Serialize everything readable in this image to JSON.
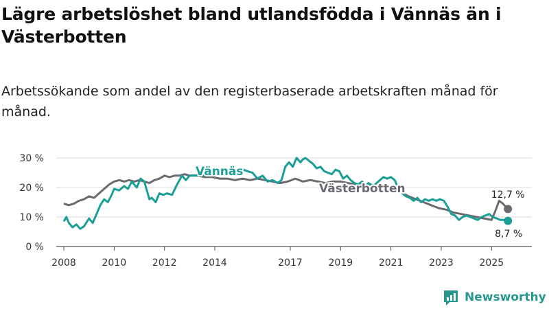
{
  "header": {
    "title": "Lägre arbetslöshet bland utlandsfödda i Vännäs än i Västerbotten",
    "subtitle": "Arbetssökande som andel av den registerbaserade arbetskraften månad för månad."
  },
  "brand": {
    "name": "Newsworthy"
  },
  "chart_data": {
    "type": "line",
    "title": "Lägre arbetslöshet bland utlandsfödda i Vännäs än i Västerbotten",
    "subtitle": "Arbetssökande som andel av den registerbaserade arbetskraften månad för månad.",
    "xlabel": "",
    "ylabel": "",
    "xlim": [
      2007.7,
      2026.6
    ],
    "ylim": [
      0,
      30
    ],
    "y_ticks": [
      0,
      10,
      20,
      30
    ],
    "y_tick_labels": [
      "0 %",
      "10 %",
      "20 %",
      "30 %"
    ],
    "x_ticks": [
      2008,
      2010,
      2012,
      2014,
      2017,
      2019,
      2021,
      2023,
      2025
    ],
    "x_tick_labels": [
      "2008",
      "2010",
      "2012",
      "2014",
      "2017",
      "2019",
      "2021",
      "2023",
      "2025"
    ],
    "grid": true,
    "colors": {
      "Vännäs": "#1a9e96",
      "Västerbotten": "#6b6a70"
    },
    "series": [
      {
        "name": "Vännäs",
        "label": "Vännäs",
        "end_label": "8,7 %",
        "x": [
          2008.0,
          2008.1,
          2008.2,
          2008.35,
          2008.5,
          2008.65,
          2008.8,
          2009.0,
          2009.15,
          2009.3,
          2009.45,
          2009.6,
          2009.75,
          2009.9,
          2010.0,
          2010.2,
          2010.4,
          2010.55,
          2010.7,
          2010.9,
          2011.05,
          2011.2,
          2011.4,
          2011.5,
          2011.65,
          2011.8,
          2011.95,
          2012.1,
          2012.3,
          2012.5,
          2012.7,
          2012.85,
          2013.0,
          2015.0,
          2015.15,
          2015.3,
          2015.5,
          2015.7,
          2015.9,
          2016.1,
          2016.3,
          2016.5,
          2016.65,
          2016.8,
          2016.95,
          2017.1,
          2017.25,
          2017.4,
          2017.5,
          2017.6,
          2017.75,
          2017.9,
          2018.05,
          2018.2,
          2018.35,
          2018.5,
          2018.65,
          2018.8,
          2018.95,
          2019.1,
          2019.25,
          2019.4,
          2019.55,
          2019.7,
          2019.85,
          2020.0,
          2020.1,
          2020.3,
          2020.5,
          2020.7,
          2020.85,
          2021.0,
          2021.15,
          2021.3,
          2021.45,
          2021.6,
          2021.75,
          2021.9,
          2022.05,
          2022.2,
          2022.35,
          2022.5,
          2022.65,
          2022.8,
          2022.95,
          2023.1,
          2023.25,
          2023.4,
          2023.55,
          2023.7,
          2023.85,
          2024.0,
          2024.15,
          2024.3,
          2024.45,
          2024.6,
          2024.75,
          2024.9,
          2025.05,
          2025.2,
          2025.35,
          2025.5,
          2025.65
        ],
        "y": [
          8.5,
          10.0,
          8.0,
          6.5,
          7.5,
          6.0,
          6.8,
          9.5,
          8.0,
          11.0,
          14.0,
          16.0,
          15.0,
          17.5,
          19.5,
          19.0,
          20.5,
          19.5,
          22.0,
          20.0,
          23.0,
          22.0,
          16.0,
          16.5,
          15.0,
          18.0,
          17.5,
          18.0,
          17.5,
          21.0,
          24.0,
          22.5,
          24.0,
          24.5,
          26.0,
          25.5,
          25.0,
          23.0,
          24.0,
          22.0,
          22.5,
          21.5,
          22.5,
          27.0,
          28.5,
          27.0,
          30.0,
          28.5,
          29.5,
          30.0,
          29.0,
          28.0,
          26.5,
          27.0,
          25.5,
          25.0,
          24.5,
          26.0,
          25.5,
          23.0,
          24.0,
          22.5,
          21.5,
          21.0,
          22.0,
          20.5,
          21.5,
          20.5,
          22.0,
          23.5,
          23.0,
          23.5,
          22.5,
          19.5,
          18.0,
          17.0,
          16.5,
          15.5,
          16.5,
          15.0,
          16.0,
          15.5,
          16.0,
          15.5,
          16.0,
          15.5,
          13.5,
          11.0,
          10.5,
          9.0,
          10.0,
          10.5,
          10.0,
          9.5,
          9.0,
          10.0,
          10.5,
          11.0,
          10.0,
          9.5,
          9.0,
          9.0,
          8.7
        ]
      },
      {
        "name": "Västerbotten",
        "label": "Västerbotten",
        "end_label": "12,7 %",
        "x": [
          2008.0,
          2008.2,
          2008.4,
          2008.6,
          2008.8,
          2009.0,
          2009.2,
          2009.4,
          2009.6,
          2009.8,
          2010.0,
          2010.2,
          2010.4,
          2010.6,
          2010.8,
          2011.0,
          2011.2,
          2011.4,
          2011.6,
          2011.8,
          2012.0,
          2012.2,
          2012.4,
          2012.6,
          2012.8,
          2013.0,
          2013.3,
          2013.6,
          2013.9,
          2014.2,
          2014.5,
          2014.8,
          2015.1,
          2015.4,
          2015.7,
          2016.0,
          2016.3,
          2016.6,
          2016.9,
          2017.2,
          2017.5,
          2017.8,
          2018.1,
          2018.4,
          2018.7,
          2019.0,
          2019.3,
          2019.6,
          2019.9,
          2020.2,
          2020.5,
          2020.8,
          2021.1,
          2021.4,
          2021.7,
          2022.0,
          2022.3,
          2022.6,
          2022.9,
          2023.2,
          2023.5,
          2023.8,
          2024.1,
          2024.4,
          2024.7,
          2025.0,
          2025.15,
          2025.3,
          2025.45,
          2025.65
        ],
        "y": [
          14.5,
          14.0,
          14.5,
          15.5,
          16.0,
          17.0,
          16.5,
          18.0,
          19.5,
          21.0,
          22.0,
          22.5,
          22.0,
          22.5,
          22.0,
          22.5,
          22.0,
          21.5,
          22.5,
          23.0,
          24.0,
          23.5,
          24.0,
          24.0,
          24.5,
          24.0,
          24.0,
          23.5,
          23.5,
          23.0,
          23.0,
          22.5,
          23.0,
          22.5,
          23.0,
          22.5,
          22.0,
          21.5,
          22.0,
          23.0,
          22.0,
          22.5,
          22.0,
          21.5,
          22.0,
          22.0,
          21.5,
          21.0,
          21.0,
          20.5,
          20.5,
          20.0,
          19.5,
          18.5,
          17.0,
          16.0,
          15.0,
          14.0,
          13.0,
          12.5,
          11.5,
          11.0,
          10.5,
          10.0,
          9.5,
          9.0,
          12.0,
          15.5,
          14.5,
          12.7
        ]
      }
    ]
  }
}
